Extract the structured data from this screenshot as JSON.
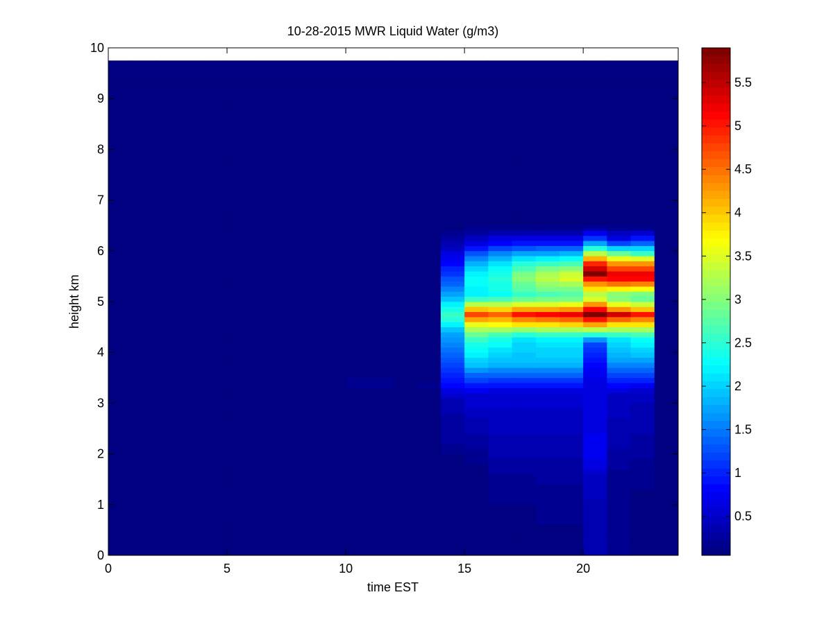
{
  "chart_data": {
    "type": "heatmap",
    "title": "10-28-2015 MWR Liquid Water (g/m3)",
    "xlabel": "time EST",
    "ylabel": "height km",
    "xlim": [
      0,
      24
    ],
    "ylim": [
      0,
      10
    ],
    "x_ticks": [
      "0",
      "5",
      "10",
      "15",
      "20"
    ],
    "y_ticks": [
      "0",
      "1",
      "2",
      "3",
      "4",
      "5",
      "6",
      "7",
      "8",
      "9",
      "10"
    ],
    "colormap": "jet",
    "colorbar": {
      "range": [
        0.05,
        5.9
      ],
      "ticks": [
        "0.5",
        "1",
        "1.5",
        "2",
        "2.5",
        "3",
        "3.5",
        "4",
        "4.5",
        "5",
        "5.5"
      ]
    },
    "x_cells": [
      0.5,
      1.5,
      2.5,
      3.5,
      4.5,
      5.5,
      6.5,
      7.5,
      8.5,
      9.5,
      10.5,
      11.5,
      12.5,
      13.5,
      14.5,
      15.5,
      16.5,
      17.5,
      18.5,
      19.5,
      20.5,
      21.5,
      22.5,
      23.5
    ],
    "data_top_km": 9.75,
    "background_value": 0.05,
    "column_profiles": [
      {
        "x": 10.5,
        "points": [
          [
            3.25,
            0.05
          ],
          [
            3.35,
            0.15
          ],
          [
            3.5,
            0.15
          ],
          [
            3.6,
            0.05
          ]
        ]
      },
      {
        "x": 11.5,
        "points": [
          [
            3.25,
            0.05
          ],
          [
            3.35,
            0.15
          ],
          [
            3.5,
            0.15
          ],
          [
            3.6,
            0.05
          ]
        ]
      },
      {
        "x": 13.5,
        "points": [
          [
            3.25,
            0.05
          ],
          [
            3.35,
            0.15
          ],
          [
            3.5,
            0.1
          ],
          [
            3.6,
            0.05
          ]
        ]
      },
      {
        "x": 14.5,
        "points": [
          [
            1.9,
            0.05
          ],
          [
            2.2,
            0.25
          ],
          [
            3.0,
            0.35
          ],
          [
            3.6,
            1.1
          ],
          [
            4.4,
            1.8
          ],
          [
            4.7,
            2.6
          ],
          [
            4.9,
            2.3
          ],
          [
            5.2,
            1.6
          ],
          [
            5.8,
            0.8
          ],
          [
            6.2,
            0.3
          ],
          [
            6.5,
            0.05
          ]
        ]
      },
      {
        "x": 15.5,
        "points": [
          [
            1.5,
            0.05
          ],
          [
            2.5,
            0.35
          ],
          [
            3.2,
            0.6
          ],
          [
            3.8,
            2.0
          ],
          [
            4.3,
            2.6
          ],
          [
            4.55,
            3.6
          ],
          [
            4.75,
            4.8
          ],
          [
            4.9,
            3.7
          ],
          [
            5.1,
            2.2
          ],
          [
            5.5,
            2.3
          ],
          [
            5.8,
            1.7
          ],
          [
            6.2,
            0.5
          ],
          [
            6.45,
            0.15
          ]
        ]
      },
      {
        "x": 16.5,
        "points": [
          [
            0.3,
            0.05
          ],
          [
            1.5,
            0.2
          ],
          [
            2.0,
            0.35
          ],
          [
            3.2,
            0.55
          ],
          [
            3.8,
            1.9
          ],
          [
            4.3,
            2.4
          ],
          [
            4.55,
            3.7
          ],
          [
            4.75,
            4.6
          ],
          [
            4.9,
            3.6
          ],
          [
            5.1,
            2.3
          ],
          [
            5.5,
            2.5
          ],
          [
            5.8,
            2.0
          ],
          [
            6.2,
            0.7
          ],
          [
            6.45,
            0.2
          ]
        ]
      },
      {
        "x": 17.5,
        "points": [
          [
            0.3,
            0.05
          ],
          [
            1.5,
            0.2
          ],
          [
            2.0,
            0.35
          ],
          [
            3.2,
            0.55
          ],
          [
            3.8,
            1.9
          ],
          [
            4.3,
            2.1
          ],
          [
            4.55,
            3.8
          ],
          [
            4.75,
            5.0
          ],
          [
            4.9,
            3.8
          ],
          [
            5.1,
            2.5
          ],
          [
            5.5,
            3.1
          ],
          [
            5.8,
            2.3
          ],
          [
            6.2,
            0.7
          ],
          [
            6.45,
            0.2
          ]
        ]
      },
      {
        "x": 18.5,
        "points": [
          [
            0.3,
            0.1
          ],
          [
            1.5,
            0.25
          ],
          [
            2.0,
            0.35
          ],
          [
            3.2,
            0.55
          ],
          [
            3.8,
            1.9
          ],
          [
            4.3,
            2.2
          ],
          [
            4.55,
            3.8
          ],
          [
            4.75,
            5.1
          ],
          [
            4.9,
            3.8
          ],
          [
            5.1,
            2.6
          ],
          [
            5.5,
            3.4
          ],
          [
            5.8,
            2.4
          ],
          [
            6.2,
            0.7
          ],
          [
            6.45,
            0.2
          ]
        ]
      },
      {
        "x": 19.5,
        "points": [
          [
            0.3,
            0.1
          ],
          [
            1.5,
            0.25
          ],
          [
            2.0,
            0.35
          ],
          [
            3.2,
            0.55
          ],
          [
            3.8,
            1.9
          ],
          [
            4.3,
            2.2
          ],
          [
            4.55,
            3.9
          ],
          [
            4.75,
            5.2
          ],
          [
            4.9,
            3.9
          ],
          [
            5.1,
            2.6
          ],
          [
            5.5,
            3.6
          ],
          [
            5.8,
            2.5
          ],
          [
            6.2,
            0.7
          ],
          [
            6.45,
            0.2
          ]
        ]
      },
      {
        "x": 20.5,
        "points": [
          [
            0.3,
            0.35
          ],
          [
            1.5,
            0.45
          ],
          [
            2.0,
            0.75
          ],
          [
            3.0,
            0.6
          ],
          [
            3.6,
            0.7
          ],
          [
            3.9,
            1.0
          ],
          [
            4.2,
            1.2
          ],
          [
            4.45,
            3.3
          ],
          [
            4.75,
            5.9
          ],
          [
            4.95,
            4.3
          ],
          [
            5.1,
            3.0
          ],
          [
            5.4,
            4.6
          ],
          [
            5.55,
            5.9
          ],
          [
            5.75,
            4.9
          ],
          [
            5.9,
            3.7
          ],
          [
            6.2,
            1.3
          ],
          [
            6.45,
            0.3
          ]
        ]
      },
      {
        "x": 21.5,
        "points": [
          [
            0.3,
            0.2
          ],
          [
            1.5,
            0.2
          ],
          [
            2.0,
            0.3
          ],
          [
            3.2,
            0.5
          ],
          [
            3.8,
            1.7
          ],
          [
            4.3,
            2.2
          ],
          [
            4.55,
            3.8
          ],
          [
            4.75,
            5.4
          ],
          [
            4.9,
            3.8
          ],
          [
            5.1,
            2.7
          ],
          [
            5.5,
            5.5
          ],
          [
            5.75,
            4.3
          ],
          [
            5.95,
            2.8
          ],
          [
            6.2,
            0.8
          ],
          [
            6.45,
            0.2
          ]
        ]
      },
      {
        "x": 22.5,
        "points": [
          [
            0.3,
            0.1
          ],
          [
            1.5,
            0.15
          ],
          [
            2.0,
            0.25
          ],
          [
            3.2,
            0.45
          ],
          [
            3.8,
            1.7
          ],
          [
            4.3,
            2.4
          ],
          [
            4.55,
            3.8
          ],
          [
            4.75,
            5.0
          ],
          [
            4.9,
            3.6
          ],
          [
            5.1,
            2.6
          ],
          [
            5.5,
            5.5
          ],
          [
            5.75,
            4.3
          ],
          [
            5.95,
            2.6
          ],
          [
            6.2,
            1.1
          ],
          [
            6.45,
            0.2
          ]
        ]
      }
    ]
  }
}
